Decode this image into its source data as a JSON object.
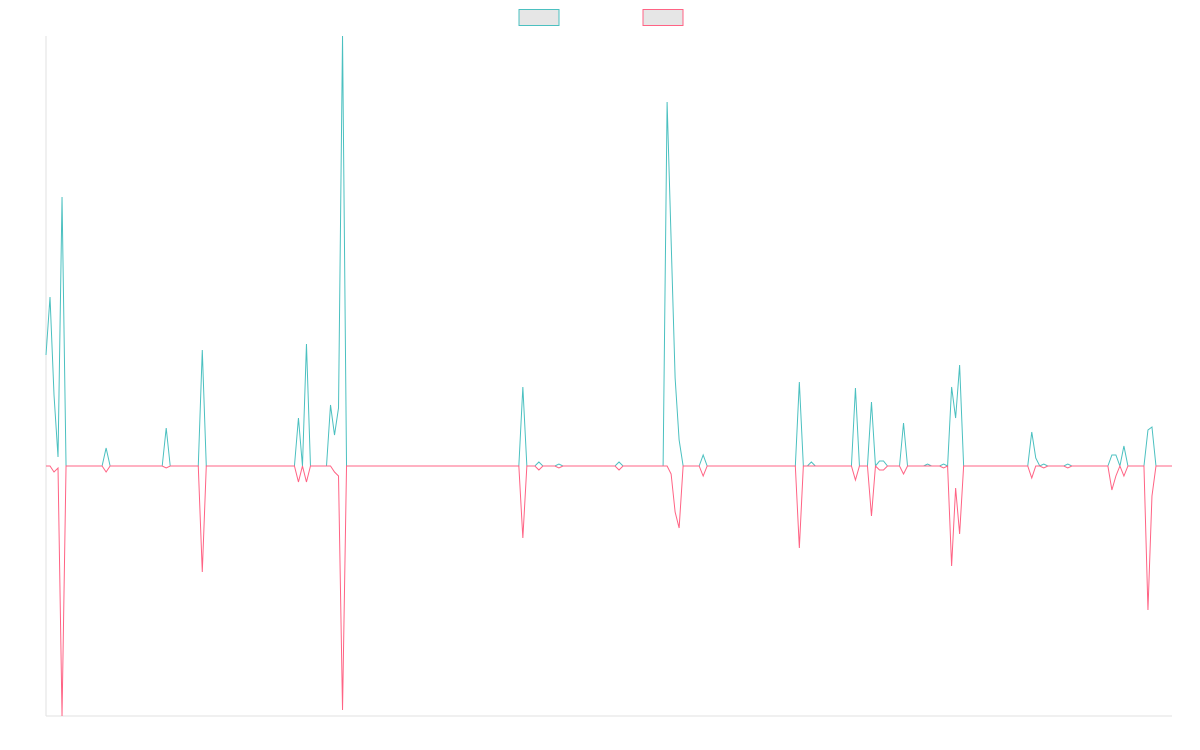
{
  "chart_data": {
    "type": "line",
    "categories": [
      null,
      null,
      null,
      null,
      null,
      null,
      null,
      null,
      null,
      null,
      null,
      null,
      null,
      null,
      null,
      null,
      null,
      null,
      null,
      null,
      null,
      null,
      null,
      null,
      null,
      null,
      null,
      null,
      null,
      null,
      null,
      null,
      null,
      null,
      null,
      null,
      null,
      null,
      null,
      null,
      null,
      null,
      null,
      null,
      null,
      null,
      null,
      null,
      null,
      null,
      null,
      null,
      null,
      null,
      null,
      null,
      null,
      null,
      null,
      null,
      null,
      null,
      null,
      null,
      null,
      null,
      null,
      null,
      null,
      null,
      null,
      null,
      null,
      null,
      null,
      null,
      null,
      null,
      null,
      null,
      null,
      null,
      null,
      null,
      null,
      null,
      null,
      null,
      null,
      null,
      null,
      null,
      null,
      null,
      null,
      null,
      null,
      null,
      null,
      null,
      null,
      null,
      null,
      null,
      null,
      null,
      null,
      null,
      null,
      null,
      null,
      null,
      null,
      null,
      null,
      null,
      null,
      null,
      null,
      null,
      null,
      null,
      null,
      null,
      null,
      null,
      null,
      null,
      null,
      null,
      null,
      null,
      null,
      null,
      null,
      null,
      null,
      null,
      null,
      null,
      null,
      null,
      null,
      null,
      null,
      null,
      null,
      null,
      null,
      null,
      null,
      null,
      null,
      null,
      null,
      null,
      null,
      null,
      null,
      null,
      null,
      null,
      null,
      null,
      null,
      null,
      null,
      null,
      null,
      null,
      null,
      null,
      null,
      null,
      null,
      null,
      null,
      null,
      null,
      null,
      null,
      null,
      null,
      null,
      null,
      null,
      null,
      null,
      null,
      null,
      null,
      null,
      null,
      null,
      null,
      null,
      null,
      null,
      null,
      null,
      null,
      null,
      null,
      null,
      null,
      null,
      null,
      null,
      null,
      null,
      null,
      null,
      null,
      null,
      null,
      null,
      null,
      null,
      null,
      null,
      null,
      null,
      null,
      null,
      null,
      null,
      null,
      null,
      null,
      null,
      null,
      null,
      null,
      null,
      null,
      null,
      null,
      null,
      null,
      null,
      null,
      null,
      null,
      null,
      null,
      null,
      null,
      null,
      null,
      null,
      null,
      null,
      null,
      null,
      null,
      null,
      null,
      null,
      null,
      null,
      null,
      null,
      null,
      null,
      null,
      null,
      null,
      null,
      null,
      null,
      null,
      null,
      null,
      null,
      null,
      null,
      null,
      null,
      null,
      null,
      null,
      null
    ],
    "series": [
      {
        "color": "#4bc0c0",
        "values": [
          111,
          169,
          71,
          9,
          269,
          0,
          0,
          0,
          0,
          0,
          0,
          0,
          0,
          0,
          0,
          18,
          0,
          0,
          0,
          0,
          0,
          0,
          0,
          0,
          0,
          0,
          0,
          0,
          0,
          0,
          38,
          0,
          0,
          0,
          0,
          0,
          0,
          0,
          0,
          116,
          0,
          0,
          0,
          0,
          0,
          0,
          0,
          0,
          0,
          0,
          0,
          0,
          0,
          0,
          0,
          0,
          0,
          0,
          0,
          0,
          0,
          0,
          0,
          48,
          0,
          122,
          0,
          0,
          0,
          0,
          0,
          61,
          31,
          58,
          430,
          0,
          0,
          0,
          0,
          0,
          0,
          0,
          0,
          0,
          0,
          0,
          0,
          0,
          0,
          0,
          0,
          0,
          0,
          0,
          0,
          0,
          0,
          0,
          0,
          0,
          0,
          0,
          0,
          0,
          0,
          0,
          0,
          0,
          0,
          0,
          0,
          0,
          0,
          0,
          0,
          0,
          0,
          0,
          0,
          79,
          0,
          0,
          0,
          4,
          0,
          0,
          0,
          0,
          2,
          0,
          0,
          0,
          0,
          0,
          0,
          0,
          0,
          0,
          0,
          0,
          0,
          0,
          0,
          4,
          0,
          0,
          0,
          0,
          0,
          0,
          0,
          0,
          0,
          0,
          0,
          364,
          226,
          88,
          26,
          0,
          0,
          0,
          0,
          0,
          11,
          0,
          0,
          0,
          0,
          0,
          0,
          0,
          0,
          0,
          0,
          0,
          0,
          0,
          0,
          0,
          0,
          0,
          0,
          0,
          0,
          0,
          0,
          0,
          84,
          0,
          0,
          4,
          0,
          0,
          0,
          0,
          0,
          0,
          0,
          0,
          0,
          0,
          78,
          0,
          0,
          0,
          64,
          0,
          5,
          5,
          0,
          0,
          0,
          0,
          43,
          0,
          0,
          0,
          0,
          0,
          2,
          0,
          0,
          0,
          2,
          0,
          79,
          48,
          101,
          0,
          0,
          0,
          0,
          0,
          0,
          0,
          0,
          0,
          0,
          0,
          0,
          0,
          0,
          0,
          0,
          0,
          34,
          8,
          0,
          2,
          0,
          0,
          0,
          0,
          0,
          2,
          0,
          0,
          0,
          0,
          0,
          0,
          0,
          0,
          0,
          0,
          11,
          11,
          0,
          20,
          0,
          0,
          0,
          0,
          0,
          36,
          39,
          0,
          0,
          0,
          0,
          0
        ]
      },
      {
        "color": "#ff6384",
        "values": [
          0,
          0,
          -6,
          -2,
          -250,
          0,
          0,
          0,
          0,
          0,
          0,
          0,
          0,
          0,
          0,
          -6,
          0,
          0,
          0,
          0,
          0,
          0,
          0,
          0,
          0,
          0,
          0,
          0,
          0,
          0,
          -2,
          0,
          0,
          0,
          0,
          0,
          0,
          0,
          0,
          -106,
          0,
          0,
          0,
          0,
          0,
          0,
          0,
          0,
          0,
          0,
          0,
          0,
          0,
          0,
          0,
          0,
          0,
          0,
          0,
          0,
          0,
          0,
          0,
          -16,
          0,
          -16,
          0,
          0,
          0,
          0,
          0,
          0,
          -6,
          -10,
          -244,
          0,
          0,
          0,
          0,
          0,
          0,
          0,
          0,
          0,
          0,
          0,
          0,
          0,
          0,
          0,
          0,
          0,
          0,
          0,
          0,
          0,
          0,
          0,
          0,
          0,
          0,
          0,
          0,
          0,
          0,
          0,
          0,
          0,
          0,
          0,
          0,
          0,
          0,
          0,
          0,
          0,
          0,
          0,
          0,
          -72,
          0,
          0,
          0,
          -4,
          0,
          0,
          0,
          0,
          -2,
          0,
          0,
          0,
          0,
          0,
          0,
          0,
          0,
          0,
          0,
          0,
          0,
          0,
          0,
          -4,
          0,
          0,
          0,
          0,
          0,
          0,
          0,
          0,
          0,
          0,
          0,
          0,
          -8,
          -46,
          -62,
          0,
          0,
          0,
          0,
          0,
          -10,
          0,
          0,
          0,
          0,
          0,
          0,
          0,
          0,
          0,
          0,
          0,
          0,
          0,
          0,
          0,
          0,
          0,
          0,
          0,
          0,
          0,
          0,
          0,
          -82,
          0,
          0,
          0,
          0,
          0,
          0,
          0,
          0,
          0,
          0,
          0,
          0,
          0,
          -14,
          0,
          0,
          0,
          -50,
          0,
          -4,
          -4,
          0,
          0,
          0,
          0,
          -8,
          0,
          0,
          0,
          0,
          0,
          0,
          0,
          0,
          0,
          -2,
          0,
          -100,
          -22,
          -68,
          0,
          0,
          0,
          0,
          0,
          0,
          0,
          0,
          0,
          0,
          0,
          0,
          0,
          0,
          0,
          0,
          0,
          -12,
          0,
          0,
          -2,
          0,
          0,
          0,
          0,
          0,
          -2,
          0,
          0,
          0,
          0,
          0,
          0,
          0,
          0,
          0,
          0,
          -24,
          -10,
          0,
          -10,
          0,
          0,
          0,
          0,
          0,
          -144,
          -30,
          0,
          0,
          0,
          0,
          0
        ]
      }
    ],
    "ylim": [
      -250,
      430
    ],
    "legend": "top"
  }
}
